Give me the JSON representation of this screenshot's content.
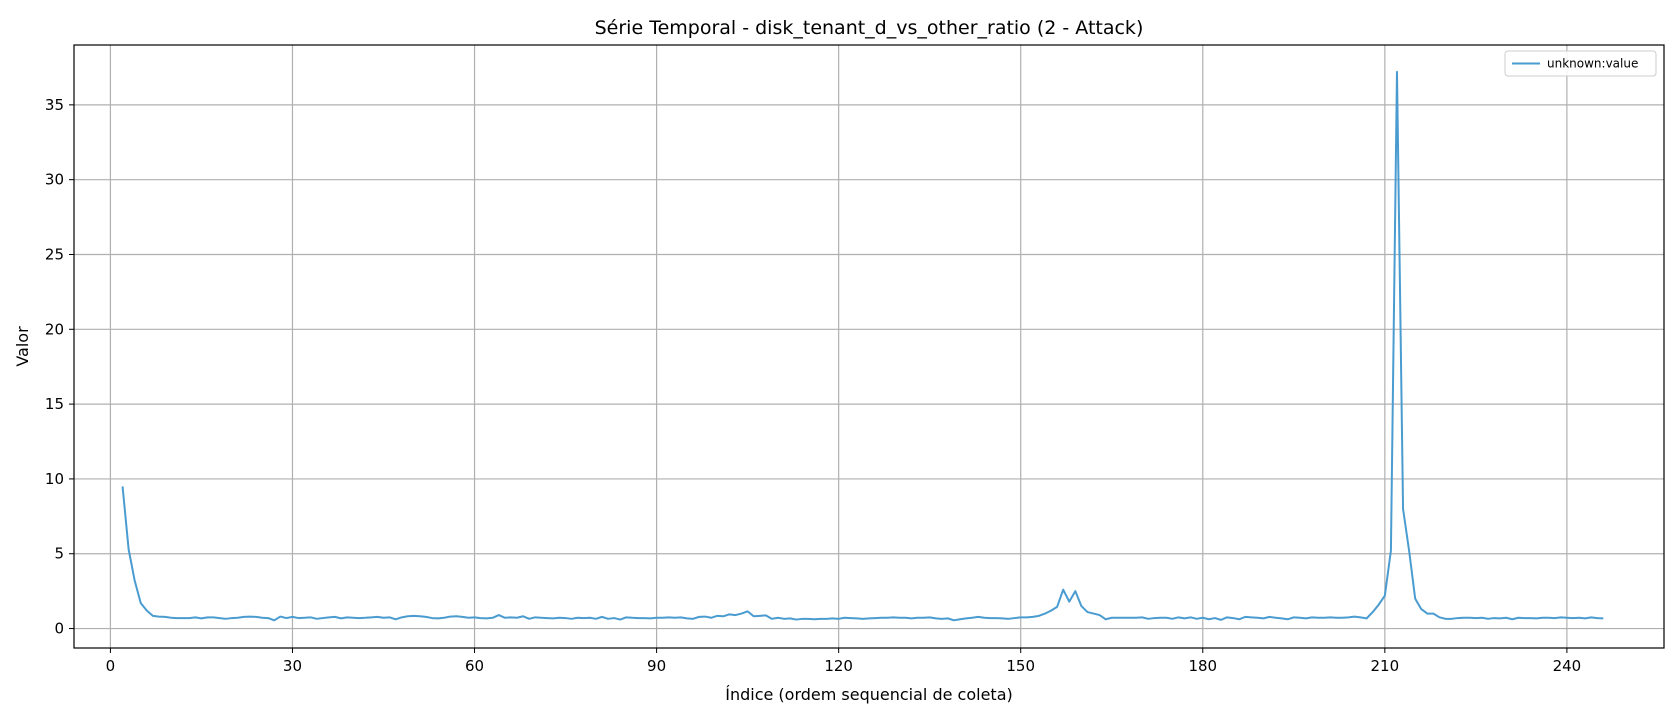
{
  "chart_data": {
    "type": "line",
    "title": "Série Temporal - disk_tenant_d_vs_other_ratio (2 - Attack)",
    "xlabel": "Índice (ordem sequencial de coleta)",
    "ylabel": "Valor",
    "xlim": [
      -6,
      256
    ],
    "ylim": [
      -1.3,
      39
    ],
    "xticks": [
      0,
      30,
      60,
      90,
      120,
      150,
      180,
      210,
      240
    ],
    "yticks": [
      0,
      5,
      10,
      15,
      20,
      25,
      30,
      35
    ],
    "grid": true,
    "legend_position": "top-right",
    "series": [
      {
        "name": "unknown:value",
        "color": "#4a9cd0",
        "points": [
          [
            2,
            9.5
          ],
          [
            3,
            5.3
          ],
          [
            4,
            3.2
          ],
          [
            5,
            1.7
          ],
          [
            6,
            1.2
          ],
          [
            7,
            0.85
          ],
          [
            8,
            0.8
          ],
          [
            9,
            0.78
          ],
          [
            10,
            0.72
          ],
          [
            11,
            0.7
          ],
          [
            12,
            0.7
          ],
          [
            13,
            0.7
          ],
          [
            14,
            0.75
          ],
          [
            15,
            0.68
          ],
          [
            16,
            0.75
          ],
          [
            17,
            0.75
          ],
          [
            18,
            0.7
          ],
          [
            19,
            0.65
          ],
          [
            20,
            0.7
          ],
          [
            21,
            0.72
          ],
          [
            22,
            0.78
          ],
          [
            23,
            0.8
          ],
          [
            24,
            0.78
          ],
          [
            25,
            0.72
          ],
          [
            26,
            0.7
          ],
          [
            27,
            0.55
          ],
          [
            28,
            0.8
          ],
          [
            29,
            0.7
          ],
          [
            30,
            0.78
          ],
          [
            31,
            0.7
          ],
          [
            32,
            0.72
          ],
          [
            33,
            0.75
          ],
          [
            34,
            0.65
          ],
          [
            35,
            0.7
          ],
          [
            36,
            0.75
          ],
          [
            37,
            0.78
          ],
          [
            38,
            0.68
          ],
          [
            39,
            0.75
          ],
          [
            40,
            0.72
          ],
          [
            41,
            0.7
          ],
          [
            42,
            0.72
          ],
          [
            43,
            0.75
          ],
          [
            44,
            0.78
          ],
          [
            45,
            0.72
          ],
          [
            46,
            0.75
          ],
          [
            47,
            0.62
          ],
          [
            48,
            0.75
          ],
          [
            49,
            0.82
          ],
          [
            50,
            0.85
          ],
          [
            51,
            0.82
          ],
          [
            52,
            0.78
          ],
          [
            53,
            0.7
          ],
          [
            54,
            0.68
          ],
          [
            55,
            0.72
          ],
          [
            56,
            0.8
          ],
          [
            57,
            0.82
          ],
          [
            58,
            0.78
          ],
          [
            59,
            0.72
          ],
          [
            60,
            0.75
          ],
          [
            61,
            0.7
          ],
          [
            62,
            0.68
          ],
          [
            63,
            0.72
          ],
          [
            64,
            0.9
          ],
          [
            65,
            0.72
          ],
          [
            66,
            0.75
          ],
          [
            67,
            0.72
          ],
          [
            68,
            0.82
          ],
          [
            69,
            0.65
          ],
          [
            70,
            0.75
          ],
          [
            71,
            0.72
          ],
          [
            72,
            0.7
          ],
          [
            73,
            0.68
          ],
          [
            74,
            0.72
          ],
          [
            75,
            0.7
          ],
          [
            76,
            0.65
          ],
          [
            77,
            0.72
          ],
          [
            78,
            0.7
          ],
          [
            79,
            0.72
          ],
          [
            80,
            0.65
          ],
          [
            81,
            0.78
          ],
          [
            82,
            0.65
          ],
          [
            83,
            0.7
          ],
          [
            84,
            0.6
          ],
          [
            85,
            0.75
          ],
          [
            86,
            0.72
          ],
          [
            87,
            0.7
          ],
          [
            88,
            0.7
          ],
          [
            89,
            0.68
          ],
          [
            90,
            0.72
          ],
          [
            91,
            0.72
          ],
          [
            92,
            0.75
          ],
          [
            93,
            0.72
          ],
          [
            94,
            0.75
          ],
          [
            95,
            0.68
          ],
          [
            96,
            0.65
          ],
          [
            97,
            0.78
          ],
          [
            98,
            0.8
          ],
          [
            99,
            0.72
          ],
          [
            100,
            0.85
          ],
          [
            101,
            0.82
          ],
          [
            102,
            0.95
          ],
          [
            103,
            0.9
          ],
          [
            104,
            1.0
          ],
          [
            105,
            1.15
          ],
          [
            106,
            0.82
          ],
          [
            107,
            0.85
          ],
          [
            108,
            0.88
          ],
          [
            109,
            0.65
          ],
          [
            110,
            0.72
          ],
          [
            111,
            0.65
          ],
          [
            112,
            0.68
          ],
          [
            113,
            0.6
          ],
          [
            114,
            0.65
          ],
          [
            115,
            0.65
          ],
          [
            116,
            0.62
          ],
          [
            117,
            0.65
          ],
          [
            118,
            0.65
          ],
          [
            119,
            0.68
          ],
          [
            120,
            0.65
          ],
          [
            121,
            0.72
          ],
          [
            122,
            0.7
          ],
          [
            123,
            0.68
          ],
          [
            124,
            0.65
          ],
          [
            125,
            0.68
          ],
          [
            126,
            0.7
          ],
          [
            127,
            0.72
          ],
          [
            128,
            0.72
          ],
          [
            129,
            0.75
          ],
          [
            130,
            0.72
          ],
          [
            131,
            0.72
          ],
          [
            132,
            0.68
          ],
          [
            133,
            0.72
          ],
          [
            134,
            0.72
          ],
          [
            135,
            0.75
          ],
          [
            136,
            0.68
          ],
          [
            137,
            0.65
          ],
          [
            138,
            0.68
          ],
          [
            139,
            0.55
          ],
          [
            140,
            0.62
          ],
          [
            141,
            0.68
          ],
          [
            142,
            0.72
          ],
          [
            143,
            0.78
          ],
          [
            144,
            0.72
          ],
          [
            145,
            0.7
          ],
          [
            146,
            0.7
          ],
          [
            147,
            0.68
          ],
          [
            148,
            0.65
          ],
          [
            149,
            0.7
          ],
          [
            150,
            0.75
          ],
          [
            151,
            0.75
          ],
          [
            152,
            0.78
          ],
          [
            153,
            0.85
          ],
          [
            154,
            1.0
          ],
          [
            155,
            1.2
          ],
          [
            156,
            1.45
          ],
          [
            157,
            2.6
          ],
          [
            158,
            1.8
          ],
          [
            159,
            2.5
          ],
          [
            160,
            1.5
          ],
          [
            161,
            1.1
          ],
          [
            162,
            1.0
          ],
          [
            163,
            0.9
          ],
          [
            164,
            0.62
          ],
          [
            165,
            0.72
          ],
          [
            166,
            0.72
          ],
          [
            167,
            0.72
          ],
          [
            168,
            0.72
          ],
          [
            169,
            0.72
          ],
          [
            170,
            0.75
          ],
          [
            171,
            0.65
          ],
          [
            172,
            0.7
          ],
          [
            173,
            0.72
          ],
          [
            174,
            0.72
          ],
          [
            175,
            0.65
          ],
          [
            176,
            0.75
          ],
          [
            177,
            0.68
          ],
          [
            178,
            0.75
          ],
          [
            179,
            0.65
          ],
          [
            180,
            0.72
          ],
          [
            181,
            0.62
          ],
          [
            182,
            0.7
          ],
          [
            183,
            0.58
          ],
          [
            184,
            0.75
          ],
          [
            185,
            0.7
          ],
          [
            186,
            0.62
          ],
          [
            187,
            0.78
          ],
          [
            188,
            0.75
          ],
          [
            189,
            0.72
          ],
          [
            190,
            0.68
          ],
          [
            191,
            0.78
          ],
          [
            192,
            0.72
          ],
          [
            193,
            0.68
          ],
          [
            194,
            0.62
          ],
          [
            195,
            0.75
          ],
          [
            196,
            0.72
          ],
          [
            197,
            0.68
          ],
          [
            198,
            0.75
          ],
          [
            199,
            0.72
          ],
          [
            200,
            0.72
          ],
          [
            201,
            0.75
          ],
          [
            202,
            0.72
          ],
          [
            203,
            0.72
          ],
          [
            204,
            0.75
          ],
          [
            205,
            0.8
          ],
          [
            206,
            0.75
          ],
          [
            207,
            0.68
          ],
          [
            208,
            1.1
          ],
          [
            209,
            1.6
          ],
          [
            210,
            2.2
          ],
          [
            211,
            5.2
          ],
          [
            212,
            37.2
          ],
          [
            213,
            8.0
          ],
          [
            214,
            5.2
          ],
          [
            215,
            2.0
          ],
          [
            216,
            1.3
          ],
          [
            217,
            1.0
          ],
          [
            218,
            1.0
          ],
          [
            219,
            0.75
          ],
          [
            220,
            0.65
          ],
          [
            221,
            0.65
          ],
          [
            222,
            0.7
          ],
          [
            223,
            0.72
          ],
          [
            224,
            0.72
          ],
          [
            225,
            0.7
          ],
          [
            226,
            0.72
          ],
          [
            227,
            0.65
          ],
          [
            228,
            0.7
          ],
          [
            229,
            0.68
          ],
          [
            230,
            0.72
          ],
          [
            231,
            0.62
          ],
          [
            232,
            0.72
          ],
          [
            233,
            0.7
          ],
          [
            234,
            0.7
          ],
          [
            235,
            0.68
          ],
          [
            236,
            0.72
          ],
          [
            237,
            0.72
          ],
          [
            238,
            0.7
          ],
          [
            239,
            0.75
          ],
          [
            240,
            0.72
          ],
          [
            241,
            0.7
          ],
          [
            242,
            0.72
          ],
          [
            243,
            0.68
          ],
          [
            244,
            0.75
          ],
          [
            245,
            0.7
          ],
          [
            246,
            0.68
          ]
        ]
      }
    ]
  }
}
